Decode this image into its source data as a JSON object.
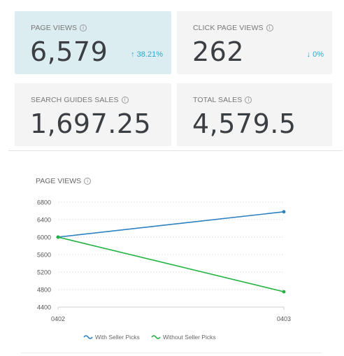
{
  "cards": [
    {
      "label": "PAGE VIEWS",
      "value": "6,579",
      "change": "↑ 38.21%",
      "active": true
    },
    {
      "label": "CLICK PAGE VIEWS",
      "value": "262",
      "change": "↓ 0%",
      "active": false
    },
    {
      "label": "SEARCH GUIDES SALES",
      "value": "1,697.25",
      "change": "",
      "active": false
    },
    {
      "label": "TOTAL SALES",
      "value": "4,579.5",
      "change": "",
      "active": false
    }
  ],
  "info_icon": "info-icon",
  "colors": {
    "accent": "#2ea7c6",
    "active_card": "#dcedf1",
    "card": "#f4f4f4",
    "series_with": "#2b80c2",
    "series_without": "#1fb33f"
  },
  "chart_title": "PAGE VIEWS",
  "chart_data": {
    "type": "line",
    "title": "PAGE VIEWS",
    "x": [
      "0402",
      "0403"
    ],
    "ylim": [
      4400,
      6800
    ],
    "yticks": [
      4400,
      4800,
      5200,
      5600,
      6000,
      6400,
      6800
    ],
    "grid": true,
    "legend_position": "bottom",
    "series": [
      {
        "name": "With Seller Picks",
        "values": [
          6000,
          6579
        ],
        "color": "#2b80c2"
      },
      {
        "name": "Without Seller Picks",
        "values": [
          6000,
          4750
        ],
        "color": "#1fb33f"
      }
    ]
  }
}
